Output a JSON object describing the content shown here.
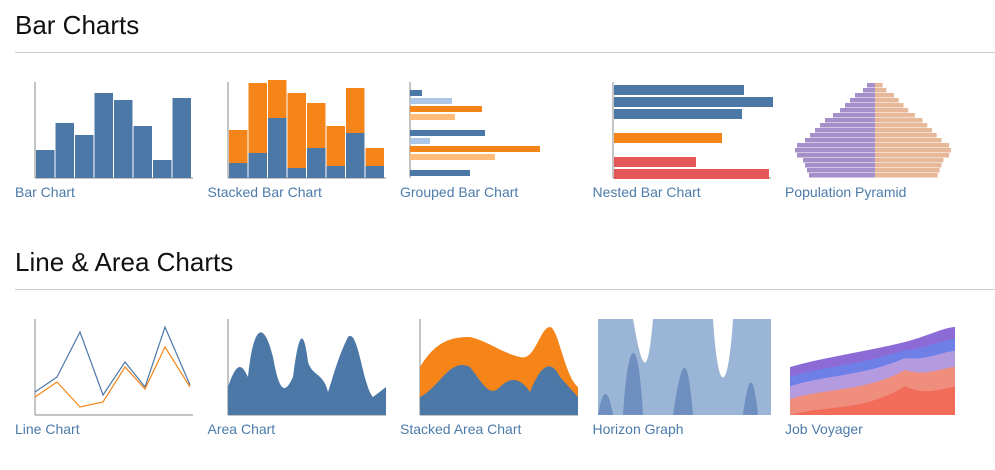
{
  "sections": [
    {
      "title": "Bar Charts",
      "items": [
        {
          "label": "Bar Chart"
        },
        {
          "label": "Stacked Bar Chart"
        },
        {
          "label": "Grouped Bar Chart"
        },
        {
          "label": "Nested Bar Chart"
        },
        {
          "label": "Population Pyramid"
        }
      ]
    },
    {
      "title": "Line & Area Charts",
      "items": [
        {
          "label": "Line Chart"
        },
        {
          "label": "Area Chart"
        },
        {
          "label": "Stacked Area Chart"
        },
        {
          "label": "Horizon Graph"
        },
        {
          "label": "Job Voyager"
        }
      ]
    }
  ]
}
